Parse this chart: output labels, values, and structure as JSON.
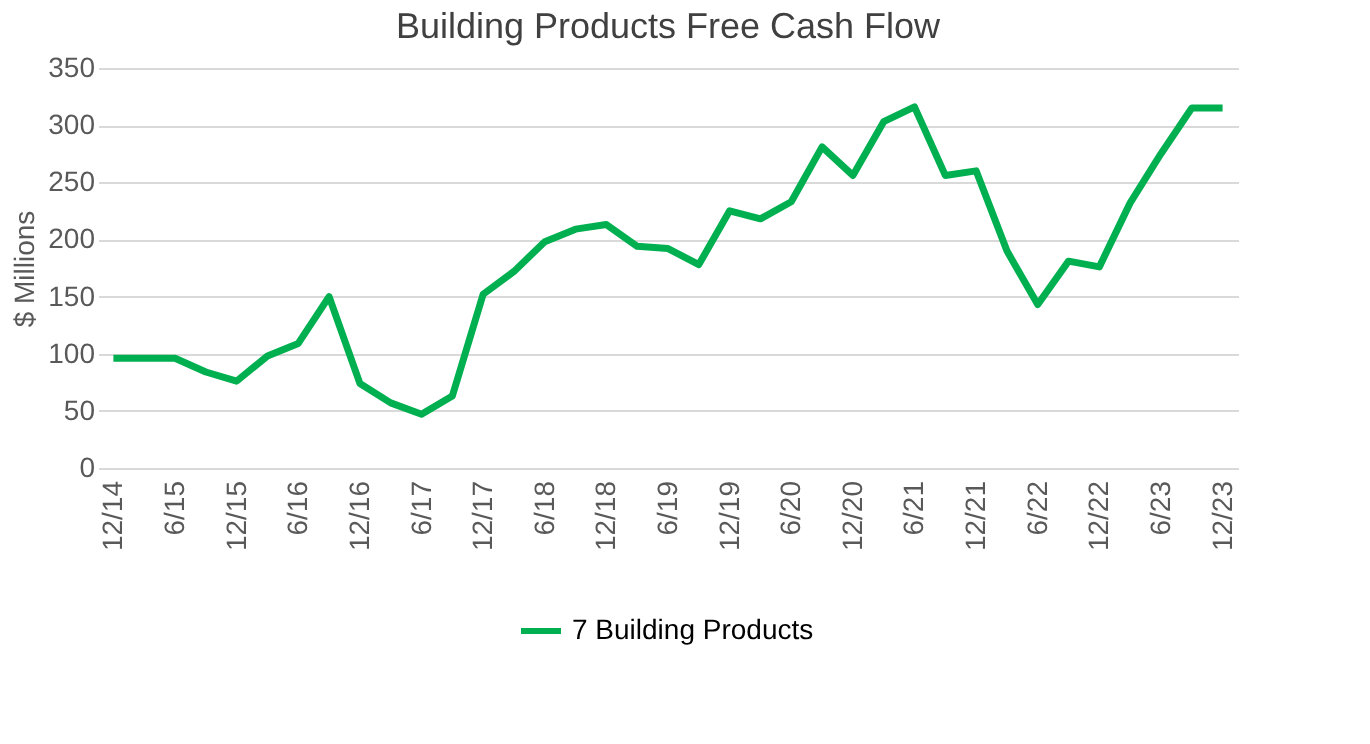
{
  "chart_data": {
    "type": "line",
    "title": "Building Products Free Cash Flow",
    "ylabel": "$ Millions",
    "categories": [
      "12/14",
      null,
      "6/15",
      null,
      "12/15",
      null,
      "6/16",
      null,
      "12/16",
      null,
      "6/17",
      null,
      "12/17",
      null,
      "6/18",
      null,
      "12/18",
      null,
      "6/19",
      null,
      "12/19",
      null,
      "6/20",
      null,
      "12/20",
      null,
      "6/21",
      null,
      "12/21",
      null,
      "6/22",
      null,
      "12/22",
      null,
      "6/23",
      null,
      "12/23"
    ],
    "series": [
      {
        "name": "7 Building Products",
        "color": "#00b050",
        "values": [
          96,
          96,
          96,
          84,
          76,
          98,
          109,
          150,
          74,
          57,
          47,
          63,
          152,
          172,
          198,
          209,
          213,
          194,
          192,
          178,
          225,
          218,
          233,
          281,
          256,
          303,
          316,
          256,
          260,
          190,
          143,
          181,
          176,
          232,
          275,
          315,
          315
        ]
      }
    ],
    "ylim": [
      0,
      350
    ],
    "yticks": [
      0,
      50,
      100,
      150,
      200,
      250,
      300,
      350
    ],
    "grid": "y",
    "legend": "bottom",
    "marker": "none",
    "line_style": "solid"
  }
}
